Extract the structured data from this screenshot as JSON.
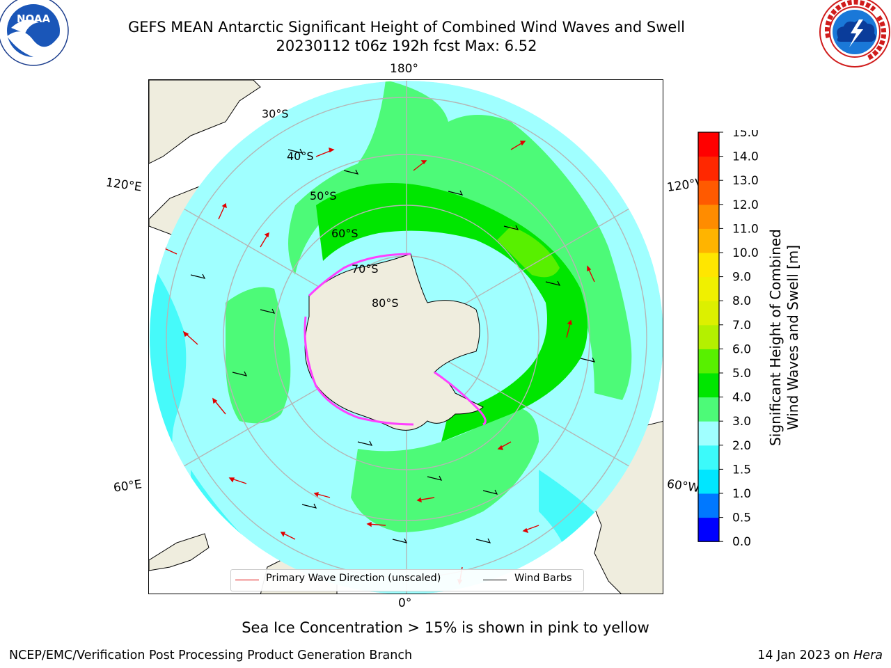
{
  "title": {
    "line1": "GEFS MEAN Antarctic Significant Height of Combined Wind Waves and Swell",
    "line2": "20230112 t06z 192h fcst   Max: 6.52"
  },
  "logos": {
    "noaa": {
      "text": "NOAA",
      "ring_text": "NATIONAL OCEANIC AND ATMOSPHERIC ADMINISTRATION · U.S. DEPARTMENT OF COMMERCE"
    },
    "nws": {
      "ring_text": "NATIONAL WEATHER SERVICE"
    }
  },
  "map": {
    "projection": "south polar stereographic",
    "longitude_labels": {
      "top": "180°",
      "bottom": "0°",
      "upper_left": "120°E",
      "lower_left": "60°E",
      "upper_right": "120°W",
      "lower_right": "60°W"
    },
    "latitude_labels": [
      "30°S",
      "40°S",
      "50°S",
      "60°S",
      "70°S",
      "80°S"
    ],
    "max_value": 6.52,
    "colors": {
      "land": "#efedde",
      "coast": "#000000",
      "grid": "#b5b5b5",
      "wave_arrow": "#e00000",
      "wind_barb": "#000000",
      "sea_ice": "#ff40ff"
    }
  },
  "legend": {
    "wave_label": "Primary Wave Direction (unscaled)",
    "barb_label": "Wind Barbs"
  },
  "colorbar": {
    "label_line1": "Significant Height of Combined",
    "label_line2": "Wind Waves and Swell [m]",
    "ticks": [
      "0.0",
      "0.5",
      "1.0",
      "1.5",
      "2.0",
      "3.0",
      "4.0",
      "5.0",
      "6.0",
      "7.0",
      "8.0",
      "9.0",
      "10.0",
      "11.0",
      "12.0",
      "13.0",
      "14.0",
      "15.0"
    ],
    "colors": [
      "#0000ff",
      "#0078ff",
      "#00e6ff",
      "#3cfafa",
      "#a0ffff",
      "#4dfa78",
      "#00e600",
      "#58f000",
      "#b4f000",
      "#dcf000",
      "#f0f000",
      "#ffe600",
      "#ffb400",
      "#ff8c00",
      "#ff5a00",
      "#ff2800",
      "#ff0000"
    ]
  },
  "caption": "Sea Ice Concentration > 15% is shown in pink to yellow",
  "footer": {
    "left": "NCEP/EMC/Verification Post Processing Product Generation Branch",
    "right_date": "14 Jan 2023 on",
    "right_host": "Hera"
  }
}
